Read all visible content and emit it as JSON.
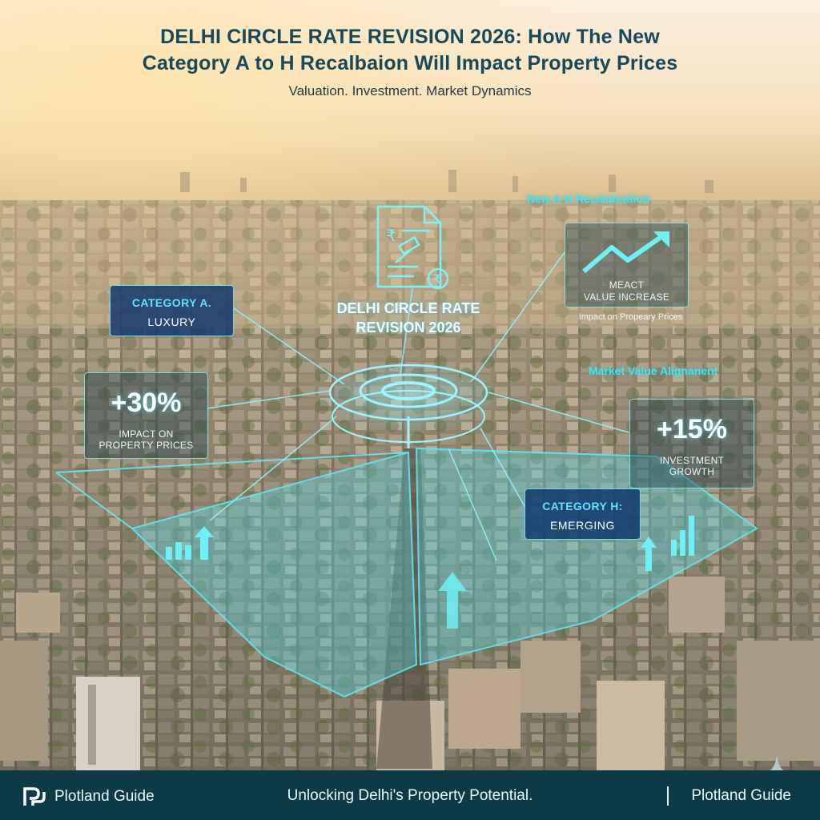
{
  "header": {
    "title_line1": "DELHI CIRCLE RATE REVISION 2026:  How The New",
    "title_line2": "Category A to H Recalbaion Will Impact Property Prices",
    "subtitle": "Valuation. Investment. Market Dynamics"
  },
  "overlay": {
    "recalibration_label": "New A-H Recalabration",
    "market_value_label": "Market Value Alignanent",
    "center_title_line1": "DELHI CIRCLE RATE",
    "center_title_line2": "REVISION 2026",
    "category_a": {
      "title": "CATEGORY A.",
      "subtitle": "LUXURY"
    },
    "category_h": {
      "title": "CATEGORY H:",
      "subtitle": "EMERGING"
    },
    "impact_left": {
      "value": "+30%",
      "label_line1": "IMPACT ON",
      "label_line2": "PROPERTY PRICES"
    },
    "investment_right": {
      "value": "+15%",
      "label_line1": "INVESTMENT",
      "label_line2": "GROWTH"
    },
    "value_increase": {
      "label_line1": "MEACT",
      "label_line2": "VALUE INCREASE"
    },
    "impact_caption": "Impact on Propeary Prices",
    "icons": [
      "document-rupee-gavel-icon",
      "trend-up-icon",
      "arrow-up-icon",
      "bar-chart-icon",
      "sparkle-icon",
      "plotland-logo-icon"
    ],
    "accent_color": "#64e0ff",
    "glow_color": "#48e4ee"
  },
  "footer": {
    "brand_left": "Plotland Guide",
    "tagline": "Unlocking Delhi's Property Potential.",
    "brand_right": "Plotland Guide",
    "background": "#0c3b47"
  }
}
